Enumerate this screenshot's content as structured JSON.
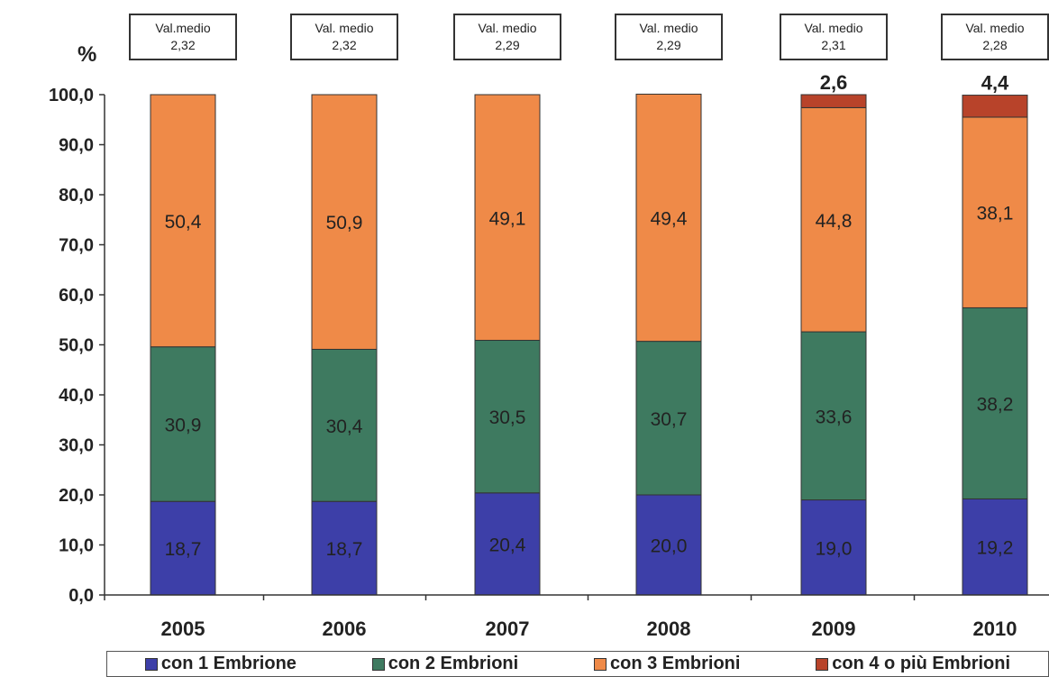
{
  "chart_data": {
    "type": "bar",
    "stacked": true,
    "ylabel": "%",
    "ylim": [
      0,
      100
    ],
    "yticks": [
      "0,0",
      "10,0",
      "20,0",
      "30,0",
      "40,0",
      "50,0",
      "60,0",
      "70,0",
      "80,0",
      "90,0",
      "100,0"
    ],
    "categories": [
      "2005",
      "2006",
      "2007",
      "2008",
      "2009",
      "2010"
    ],
    "series": [
      {
        "name": "con 1 Embrione",
        "color": "#3d3fa8",
        "values": [
          18.7,
          18.7,
          20.4,
          20.0,
          19.0,
          19.2
        ],
        "labels": [
          "18,7",
          "18,7",
          "20,4",
          "20,0",
          "19,0",
          "19,2"
        ]
      },
      {
        "name": "con 2 Embrioni",
        "color": "#3e7a60",
        "values": [
          30.9,
          30.4,
          30.5,
          30.7,
          33.6,
          38.2
        ],
        "labels": [
          "30,9",
          "30,4",
          "30,5",
          "30,7",
          "33,6",
          "38,2"
        ]
      },
      {
        "name": "con 3 Embrioni",
        "color": "#ef8a48",
        "values": [
          50.4,
          50.9,
          49.1,
          49.4,
          44.8,
          38.1
        ],
        "labels": [
          "50,4",
          "50,9",
          "49,1",
          "49,4",
          "44,8",
          "38,1"
        ]
      },
      {
        "name": "con 4 o più Embrioni",
        "color": "#b8432a",
        "values": [
          0,
          0,
          0,
          0,
          2.6,
          4.4
        ],
        "labels": [
          "",
          "",
          "",
          "",
          "2,6",
          "4,4"
        ]
      }
    ],
    "annotations": [
      {
        "title": "Val.medio",
        "value": "2,32"
      },
      {
        "title": "Val. medio",
        "value": "2,32"
      },
      {
        "title": "Val. medio",
        "value": "2,29"
      },
      {
        "title": "Val. medio",
        "value": "2,29"
      },
      {
        "title": "Val. medio",
        "value": "2,31"
      },
      {
        "title": "Val. medio",
        "value": "2,28"
      }
    ],
    "grid": false,
    "legend_position": "bottom"
  }
}
